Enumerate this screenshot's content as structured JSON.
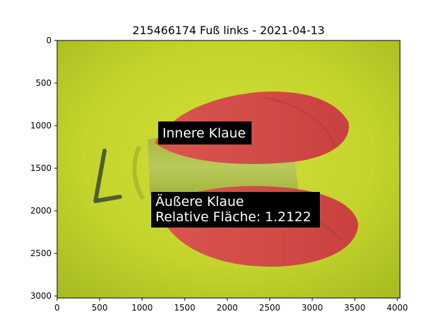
{
  "figure": {
    "title": "215466174 Fuß links - 2021-04-13"
  },
  "image": {
    "description_icon": "hoof-photo-icon",
    "colors": {
      "background_green": "#c5d62c",
      "highlight_red": "#d8554f"
    }
  },
  "axes": {
    "x_ticks": [
      {
        "value": 0,
        "label": "0"
      },
      {
        "value": 500,
        "label": "500"
      },
      {
        "value": 1000,
        "label": "1000"
      },
      {
        "value": 1500,
        "label": "1500"
      },
      {
        "value": 2000,
        "label": "2000"
      },
      {
        "value": 2500,
        "label": "2500"
      },
      {
        "value": 3000,
        "label": "3000"
      },
      {
        "value": 3500,
        "label": "3500"
      },
      {
        "value": 4000,
        "label": "4000"
      }
    ],
    "y_ticks": [
      {
        "value": 0,
        "label": "0"
      },
      {
        "value": 500,
        "label": "500"
      },
      {
        "value": 1000,
        "label": "1000"
      },
      {
        "value": 1500,
        "label": "1500"
      },
      {
        "value": 2000,
        "label": "2000"
      },
      {
        "value": 2500,
        "label": "2500"
      },
      {
        "value": 3000,
        "label": "3000"
      }
    ],
    "xlim": [
      0,
      4032
    ],
    "ylim": [
      3024,
      0
    ]
  },
  "annotations": {
    "inner": {
      "label": "Innere Klaue"
    },
    "outer": {
      "line1": "Äußere Klaue",
      "line2": "Relative Fläche: 1.2122"
    }
  }
}
